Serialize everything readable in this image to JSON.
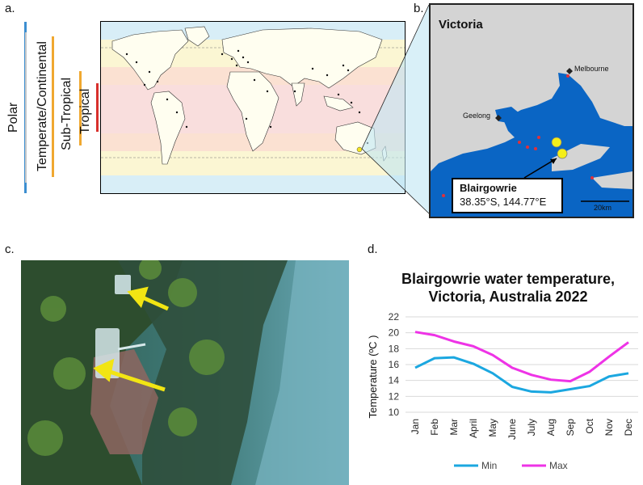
{
  "panels": {
    "a": "a.",
    "b": "b.",
    "c": "c.",
    "d": "d."
  },
  "climate_zones": [
    {
      "label": "Polar",
      "color": "#3c8ed0"
    },
    {
      "label": "Temperate/Continental",
      "color": "#f0a830"
    },
    {
      "label": "Sub-Tropical",
      "color": "#f0a830"
    },
    {
      "label": "Tropical",
      "color": "#d8302c"
    }
  ],
  "victoria_map": {
    "title": "Victoria",
    "places": [
      "Melbourne",
      "Geelong"
    ],
    "callout_name": "Blairgowrie",
    "callout_coords": "38.35°S, 144.77°E",
    "scale_label": "20km"
  },
  "colors": {
    "min": "#1ba7e0",
    "max": "#ee33e6",
    "sea": "#0a65c4",
    "land": "#d4d4d4"
  },
  "chart_data": {
    "type": "line",
    "title": "Blairgowrie water temperature, Victoria, Australia 2022",
    "title_lines": [
      "Blairgowrie water temperature,",
      "Victoria, Australia 2022"
    ],
    "ylabel": "Temperature (ºC )",
    "xlabel": "",
    "categories": [
      "Jan",
      "Feb",
      "Mar",
      "April",
      "May",
      "June",
      "July",
      "Aug",
      "Sep",
      "Oct",
      "Nov",
      "Dec"
    ],
    "yticks": [
      10,
      12,
      14,
      16,
      18,
      20,
      22
    ],
    "ylim": [
      10,
      22
    ],
    "grid": true,
    "legend_position": "bottom",
    "series": [
      {
        "name": "Min",
        "color": "#1ba7e0",
        "values": [
          15.6,
          16.8,
          16.9,
          16.1,
          14.9,
          13.2,
          12.6,
          12.5,
          12.9,
          13.3,
          14.5,
          14.9
        ]
      },
      {
        "name": "Max",
        "color": "#ee33e6",
        "values": [
          20.1,
          19.7,
          18.9,
          18.3,
          17.2,
          15.6,
          14.7,
          14.1,
          13.9,
          15.1,
          17.0,
          18.8
        ]
      }
    ]
  }
}
